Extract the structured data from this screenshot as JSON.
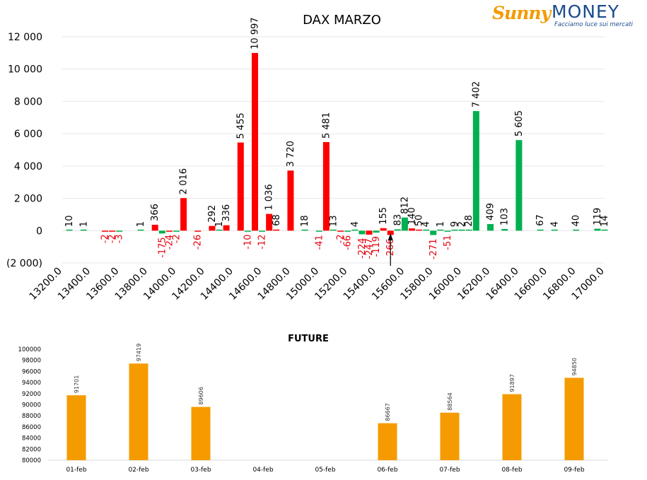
{
  "logo": {
    "word1": "Sunny",
    "word2": "MONEY",
    "tagline": "Facciamo luce sui mercati"
  },
  "colors": {
    "call": "#ff0000",
    "put": "#00b050",
    "future": "#f59b00",
    "negative_label": "#e8000b"
  },
  "chart_data": [
    {
      "type": "bar",
      "title": "DAX MARZO",
      "ylim": [
        -2000,
        12000
      ],
      "yticks": [
        12000,
        10000,
        8000,
        6000,
        4000,
        2000,
        0,
        -2000
      ],
      "ytick_labels": [
        "12 000",
        "10 000",
        "8 000",
        "6 000",
        "4 000",
        "2 000",
        "0",
        "(2 000)"
      ],
      "xlim": [
        13200,
        17000
      ],
      "xticks": [
        13200,
        13400,
        13600,
        13800,
        14000,
        14200,
        14400,
        14600,
        14800,
        15000,
        15200,
        15400,
        15600,
        15800,
        16000,
        16200,
        16400,
        16600,
        16800,
        17000
      ],
      "xtick_labels": [
        "13200.0",
        "13400.0",
        "13600.0",
        "13800.0",
        "14000.0",
        "14200.0",
        "14400.0",
        "14600.0",
        "14800.0",
        "15000.0",
        "15200.0",
        "15400.0",
        "15600.0",
        "15800.0",
        "16000.0",
        "16200.0",
        "16400.0",
        "16600.0",
        "16800.0",
        "17000.0"
      ],
      "grid": true,
      "series": [
        {
          "color": "red",
          "points": [
            {
              "x": 13500,
              "y": -2,
              "label": "-2"
            },
            {
              "x": 13550,
              "y": -2,
              "label": "-2"
            },
            {
              "x": 13850,
              "y": 366,
              "label": "366"
            },
            {
              "x": 13950,
              "y": -24,
              "label": "-24"
            },
            {
              "x": 14050,
              "y": 2016,
              "label": "2 016"
            },
            {
              "x": 14150,
              "y": -26,
              "label": "-26"
            },
            {
              "x": 14250,
              "y": 292,
              "label": "292"
            },
            {
              "x": 14350,
              "y": 336,
              "label": "336"
            },
            {
              "x": 14450,
              "y": 5455,
              "label": "5 455"
            },
            {
              "x": 14550,
              "y": 10997,
              "label": "10 997"
            },
            {
              "x": 14650,
              "y": 1036,
              "label": "1 036"
            },
            {
              "x": 14700,
              "y": 68,
              "label": "68"
            },
            {
              "x": 14800,
              "y": 3720,
              "label": "3 720"
            },
            {
              "x": 15050,
              "y": 5481,
              "label": "5 481"
            },
            {
              "x": 15150,
              "y": -2,
              "label": "-2"
            },
            {
              "x": 15350,
              "y": -247,
              "label": "-247"
            },
            {
              "x": 15450,
              "y": 155,
              "label": "155"
            },
            {
              "x": 15500,
              "y": -266,
              "label": "-266"
            },
            {
              "x": 15650,
              "y": 140,
              "label": "140"
            },
            {
              "x": 15700,
              "y": 50,
              "label": "50"
            }
          ]
        },
        {
          "color": "green",
          "points": [
            {
              "x": 13250,
              "y": 10,
              "label": "10"
            },
            {
              "x": 13350,
              "y": 1,
              "label": "1"
            },
            {
              "x": 13600,
              "y": -3,
              "label": "-3"
            },
            {
              "x": 13750,
              "y": 1,
              "label": "1"
            },
            {
              "x": 13900,
              "y": -175,
              "label": "-175"
            },
            {
              "x": 14000,
              "y": -2,
              "label": "-2"
            },
            {
              "x": 14300,
              "y": 1,
              "label": "1"
            },
            {
              "x": 14500,
              "y": -10,
              "label": "-10"
            },
            {
              "x": 14600,
              "y": -12,
              "label": "-12"
            },
            {
              "x": 14900,
              "y": 18,
              "label": "18"
            },
            {
              "x": 15000,
              "y": -41,
              "label": "-41"
            },
            {
              "x": 15100,
              "y": 13,
              "label": "13"
            },
            {
              "x": 15200,
              "y": -66,
              "label": "-66"
            },
            {
              "x": 15250,
              "y": 4,
              "label": "4"
            },
            {
              "x": 15300,
              "y": -224,
              "label": "-224"
            },
            {
              "x": 15400,
              "y": -119,
              "label": "-119"
            },
            {
              "x": 15550,
              "y": 83,
              "label": "83"
            },
            {
              "x": 15600,
              "y": 812,
              "label": "812"
            },
            {
              "x": 15750,
              "y": 4,
              "label": "4"
            },
            {
              "x": 15800,
              "y": -271,
              "label": "-271"
            },
            {
              "x": 15850,
              "y": 1,
              "label": "1"
            },
            {
              "x": 15900,
              "y": -51,
              "label": "-51"
            },
            {
              "x": 15950,
              "y": 9,
              "label": "9"
            },
            {
              "x": 16000,
              "y": 2,
              "label": "2"
            },
            {
              "x": 16050,
              "y": 28,
              "label": "28"
            },
            {
              "x": 16100,
              "y": 7402,
              "label": "7 402"
            },
            {
              "x": 16200,
              "y": 409,
              "label": "409"
            },
            {
              "x": 16300,
              "y": 103,
              "label": "103"
            },
            {
              "x": 16400,
              "y": 5605,
              "label": "5 605"
            },
            {
              "x": 16550,
              "y": 67,
              "label": "67"
            },
            {
              "x": 16650,
              "y": 4,
              "label": "4"
            },
            {
              "x": 16800,
              "y": 40,
              "label": "40"
            },
            {
              "x": 16950,
              "y": 119,
              "label": "119"
            },
            {
              "x": 17000,
              "y": 14,
              "label": "14"
            }
          ]
        }
      ],
      "marker": {
        "x": 15500,
        "shape": "arrow-up"
      }
    },
    {
      "type": "bar",
      "title": "FUTURE",
      "categories": [
        "01-feb",
        "02-feb",
        "03-feb",
        "04-feb",
        "05-feb",
        "06-feb",
        "07-feb",
        "08-feb",
        "09-feb"
      ],
      "values": [
        91701,
        97419,
        89606,
        null,
        null,
        86667,
        88564,
        91897,
        94850
      ],
      "value_labels": [
        "91701",
        "97419",
        "89606",
        "",
        "",
        "86667",
        "88564",
        "91897",
        "94850"
      ],
      "ylim": [
        80000,
        100000
      ],
      "yticks": [
        80000,
        82000,
        84000,
        86000,
        88000,
        90000,
        92000,
        94000,
        96000,
        98000,
        100000
      ],
      "ytick_labels": [
        "80000",
        "82000",
        "84000",
        "86000",
        "88000",
        "90000",
        "92000",
        "94000",
        "96000",
        "98000",
        "100000"
      ]
    }
  ]
}
